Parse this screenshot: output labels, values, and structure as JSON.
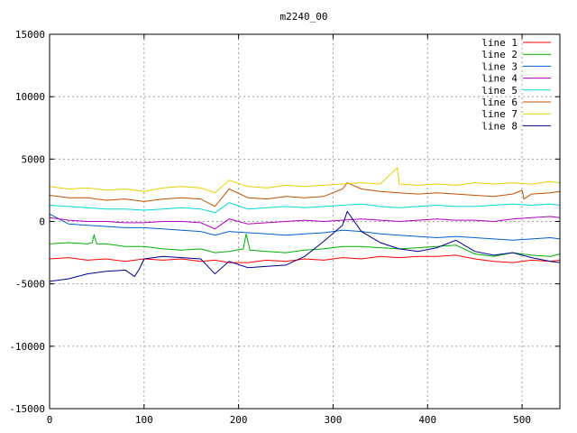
{
  "chart_data": {
    "type": "line",
    "title": "m2240_00",
    "xlabel": "",
    "ylabel": "",
    "xlim": [
      0,
      540
    ],
    "ylim": [
      -15000,
      15000
    ],
    "xticks": [
      0,
      100,
      200,
      300,
      400,
      500
    ],
    "yticks": [
      -15000,
      -10000,
      -5000,
      0,
      5000,
      10000,
      15000
    ],
    "grid": true,
    "legend_position": "top-right",
    "series": [
      {
        "name": "line 1",
        "color": "#ff0000",
        "x": [
          0,
          20,
          40,
          60,
          80,
          100,
          120,
          140,
          160,
          175,
          190,
          210,
          230,
          250,
          270,
          290,
          310,
          330,
          350,
          370,
          390,
          410,
          430,
          450,
          470,
          490,
          510,
          530,
          540
        ],
        "y": [
          -3000,
          -2900,
          -3100,
          -3000,
          -3200,
          -3000,
          -3100,
          -3000,
          -3200,
          -3100,
          -3300,
          -3300,
          -3100,
          -3200,
          -3000,
          -3100,
          -2900,
          -3000,
          -2800,
          -2900,
          -2800,
          -2800,
          -2700,
          -3000,
          -3200,
          -3300,
          -3100,
          -3200,
          -3100
        ]
      },
      {
        "name": "line 2",
        "color": "#00b000",
        "x": [
          0,
          20,
          40,
          45,
          47,
          50,
          60,
          80,
          100,
          120,
          140,
          160,
          175,
          190,
          205,
          208,
          212,
          230,
          250,
          270,
          290,
          310,
          330,
          350,
          370,
          390,
          410,
          430,
          450,
          470,
          490,
          510,
          530,
          540
        ],
        "y": [
          -1800,
          -1700,
          -1800,
          -1700,
          -1100,
          -1800,
          -1800,
          -2000,
          -2000,
          -2200,
          -2300,
          -2200,
          -2500,
          -2400,
          -2200,
          -1000,
          -2300,
          -2400,
          -2500,
          -2300,
          -2200,
          -2000,
          -2000,
          -2100,
          -2200,
          -2100,
          -2000,
          -1900,
          -2600,
          -2800,
          -2500,
          -2700,
          -2800,
          -2600
        ]
      },
      {
        "name": "line 3",
        "color": "#0060d0",
        "x": [
          0,
          20,
          40,
          60,
          80,
          100,
          120,
          140,
          160,
          175,
          190,
          210,
          230,
          250,
          270,
          290,
          310,
          330,
          350,
          370,
          390,
          410,
          430,
          450,
          470,
          490,
          510,
          530,
          540
        ],
        "y": [
          600,
          -200,
          -300,
          -400,
          -500,
          -500,
          -600,
          -700,
          -800,
          -1100,
          -800,
          -900,
          -1000,
          -1100,
          -1000,
          -900,
          -700,
          -800,
          -1000,
          -1100,
          -1200,
          -1300,
          -1200,
          -1300,
          -1400,
          -1500,
          -1400,
          -1300,
          -1400
        ]
      },
      {
        "name": "line 4",
        "color": "#b000c0",
        "x": [
          0,
          20,
          40,
          60,
          80,
          100,
          120,
          140,
          160,
          175,
          190,
          210,
          230,
          250,
          270,
          290,
          310,
          330,
          350,
          370,
          390,
          410,
          430,
          450,
          470,
          490,
          510,
          530,
          540
        ],
        "y": [
          300,
          100,
          0,
          0,
          -100,
          -100,
          0,
          0,
          -100,
          -600,
          200,
          -200,
          -100,
          0,
          100,
          0,
          100,
          200,
          100,
          0,
          100,
          200,
          100,
          100,
          0,
          200,
          300,
          400,
          300
        ]
      },
      {
        "name": "line 5",
        "color": "#00d8d8",
        "x": [
          0,
          20,
          40,
          60,
          80,
          100,
          120,
          140,
          160,
          175,
          190,
          210,
          230,
          250,
          270,
          290,
          310,
          330,
          350,
          370,
          390,
          410,
          430,
          450,
          470,
          490,
          510,
          530,
          540
        ],
        "y": [
          1300,
          1200,
          1100,
          1000,
          1000,
          900,
          1000,
          1100,
          1000,
          700,
          1500,
          1000,
          1100,
          1200,
          1100,
          1200,
          1300,
          1400,
          1200,
          1100,
          1200,
          1300,
          1200,
          1200,
          1300,
          1400,
          1300,
          1400,
          1300
        ]
      },
      {
        "name": "line 6",
        "color": "#c05000",
        "x": [
          0,
          20,
          40,
          60,
          80,
          100,
          120,
          140,
          160,
          175,
          190,
          210,
          230,
          250,
          270,
          290,
          310,
          315,
          330,
          350,
          370,
          390,
          410,
          430,
          450,
          470,
          490,
          500,
          502,
          510,
          530,
          540
        ],
        "y": [
          2100,
          1900,
          1900,
          1700,
          1800,
          1600,
          1800,
          1900,
          1800,
          1200,
          2600,
          1900,
          1800,
          2000,
          1900,
          2000,
          2600,
          3100,
          2600,
          2400,
          2300,
          2200,
          2300,
          2200,
          2100,
          2000,
          2200,
          2500,
          1800,
          2200,
          2300,
          2400
        ]
      },
      {
        "name": "line 7",
        "color": "#e8d000",
        "x": [
          0,
          20,
          40,
          60,
          80,
          100,
          120,
          140,
          160,
          175,
          190,
          210,
          230,
          250,
          270,
          290,
          310,
          330,
          350,
          368,
          370,
          390,
          410,
          430,
          450,
          470,
          490,
          510,
          530,
          540
        ],
        "y": [
          2800,
          2600,
          2700,
          2500,
          2600,
          2400,
          2700,
          2800,
          2700,
          2300,
          3300,
          2800,
          2700,
          2900,
          2800,
          2900,
          3000,
          3100,
          3000,
          4300,
          3000,
          2900,
          3000,
          2900,
          3100,
          3000,
          3100,
          3000,
          3200,
          3100
        ]
      },
      {
        "name": "line 8",
        "color": "#000090",
        "x": [
          0,
          20,
          40,
          60,
          80,
          90,
          95,
          100,
          120,
          140,
          160,
          175,
          190,
          210,
          230,
          250,
          270,
          290,
          310,
          315,
          330,
          350,
          370,
          390,
          410,
          430,
          450,
          470,
          490,
          510,
          530,
          540
        ],
        "y": [
          -4800,
          -4600,
          -4200,
          -4000,
          -3900,
          -4400,
          -3800,
          -3000,
          -2800,
          -2900,
          -3000,
          -4200,
          -3200,
          -3700,
          -3600,
          -3500,
          -2800,
          -1600,
          -300,
          800,
          -800,
          -1700,
          -2200,
          -2400,
          -2100,
          -1500,
          -2400,
          -2700,
          -2500,
          -2900,
          -3200,
          -3300
        ]
      }
    ]
  }
}
